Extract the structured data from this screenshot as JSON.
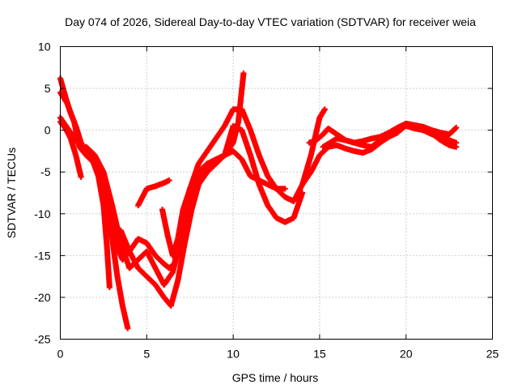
{
  "chart_data": {
    "type": "scatter",
    "title": "Day 074 of 2026, Sidereal Day-to-day VTEC variation (SDTVAR) for receiver weia",
    "xlabel": "GPS time / hours",
    "ylabel": "SDTVAR / TECUs",
    "xlim": [
      0,
      25
    ],
    "ylim": [
      -25,
      10
    ],
    "xticks": [
      0,
      5,
      10,
      15,
      20,
      25
    ],
    "yticks": [
      -25,
      -20,
      -15,
      -10,
      -5,
      0,
      5,
      10
    ],
    "grid": true,
    "marker": "plus",
    "color": "#ff0000",
    "series": [
      {
        "x": [
          0.0,
          0.3,
          0.6,
          0.9,
          1.2,
          1.5,
          1.8,
          2.1,
          2.4,
          2.7,
          3.0,
          3.3,
          3.6,
          3.9
        ],
        "y": [
          6.2,
          4.0,
          2.0,
          0.5,
          -1.5,
          -2.5,
          -3.5,
          -4.5,
          -6.5,
          -9.5,
          -13.0,
          -17.5,
          -21.0,
          -23.7
        ]
      },
      {
        "x": [
          0.0,
          0.4,
          0.8,
          1.1,
          1.5,
          1.9,
          2.2,
          2.5,
          2.7,
          2.85
        ],
        "y": [
          4.5,
          3.2,
          1.0,
          -2.0,
          -3.0,
          -3.8,
          -5.5,
          -9.0,
          -14.0,
          -18.8
        ]
      },
      {
        "x": [
          0.0,
          0.3,
          0.6,
          0.9,
          1.2
        ],
        "y": [
          1.0,
          0.2,
          -1.0,
          -3.0,
          -5.6
        ]
      },
      {
        "x": [
          0.0,
          0.5,
          1.0,
          1.5,
          2.0,
          2.4,
          2.8,
          3.2,
          3.6,
          4.0,
          4.5,
          5.0,
          5.5,
          6.0,
          6.3,
          6.6,
          7.0,
          7.5,
          8.0,
          8.5,
          9.0,
          9.5,
          10.0,
          10.5,
          11.0,
          11.5,
          12.0,
          12.5,
          13.0,
          13.5,
          14.0,
          14.5,
          15.0,
          15.3
        ],
        "y": [
          1.5,
          0.0,
          -1.5,
          -2.5,
          -3.5,
          -5.5,
          -9.0,
          -13.5,
          -15.5,
          -14.5,
          -13.0,
          -13.5,
          -15.0,
          -16.0,
          -16.5,
          -16.0,
          -12.0,
          -7.0,
          -4.0,
          -2.5,
          -1.0,
          0.5,
          2.5,
          2.5,
          0.0,
          -3.0,
          -5.5,
          -7.0,
          -8.0,
          -8.5,
          -6.5,
          -3.0,
          1.5,
          2.5
        ]
      },
      {
        "x": [
          1.5,
          2.0,
          2.5,
          3.0,
          3.5,
          4.0,
          4.5,
          5.0,
          5.5,
          6.0,
          6.5,
          7.0,
          7.5,
          8.0,
          8.5,
          9.0,
          9.5,
          10.0,
          10.3,
          10.6
        ],
        "y": [
          -2.0,
          -3.0,
          -5.0,
          -9.0,
          -13.5,
          -16.5,
          -15.5,
          -14.5,
          -16.5,
          -18.5,
          -17.0,
          -13.0,
          -8.0,
          -5.0,
          -4.0,
          -3.5,
          -3.0,
          -1.5,
          1.0,
          6.8
        ]
      },
      {
        "x": [
          3.5,
          4.0,
          4.5,
          5.0,
          5.5,
          6.0,
          6.4,
          6.8,
          7.2,
          7.6,
          8.0,
          8.5,
          9.0,
          9.5,
          10.0,
          10.5,
          11.0,
          11.5,
          12.0,
          12.5,
          13.0,
          13.5,
          14.0
        ],
        "y": [
          -12.0,
          -14.5,
          -16.5,
          -17.5,
          -18.5,
          -20.0,
          -21.0,
          -18.0,
          -13.5,
          -9.5,
          -6.5,
          -5.0,
          -4.0,
          -3.0,
          0.5,
          0.0,
          -3.0,
          -6.5,
          -9.0,
          -10.5,
          -11.0,
          -10.5,
          -7.5
        ]
      },
      {
        "x": [
          4.5,
          5.0,
          5.5,
          6.0,
          6.3
        ],
        "y": [
          -9.0,
          -7.0,
          -6.7,
          -6.3,
          -6.0
        ]
      },
      {
        "x": [
          5.9,
          6.2,
          6.5,
          6.8,
          7.1,
          7.5,
          8.0,
          8.5,
          9.0,
          9.5,
          10.0,
          10.5,
          11.0,
          11.5,
          12.0,
          12.5,
          13.0
        ],
        "y": [
          -9.5,
          -12.5,
          -15.0,
          -13.0,
          -9.5,
          -7.0,
          -5.5,
          -4.5,
          -3.5,
          -3.0,
          -2.5,
          -3.5,
          -5.5,
          -6.0,
          -6.5,
          -7.0,
          -7.0
        ]
      },
      {
        "x": [
          14.4,
          14.8,
          15.2,
          15.5,
          16.0,
          16.5,
          17.0,
          17.5,
          18.0,
          18.5,
          19.0,
          19.5,
          20.0,
          20.5,
          21.0,
          21.5,
          22.0,
          22.5,
          22.9
        ],
        "y": [
          -1.5,
          -1.2,
          -0.5,
          0.2,
          -0.5,
          -1.2,
          -1.5,
          -1.8,
          -2.0,
          -1.2,
          -0.5,
          0.0,
          0.5,
          0.2,
          0.0,
          -0.5,
          -0.8,
          -1.2,
          -1.5
        ]
      },
      {
        "x": [
          14.0,
          14.5,
          15.0,
          15.5,
          16.0,
          16.5,
          17.0,
          17.5,
          18.0,
          18.5,
          19.0,
          19.5,
          20.0,
          20.5,
          21.0,
          21.5,
          22.0,
          22.5,
          22.9
        ],
        "y": [
          -6.5,
          -5.0,
          -3.0,
          -2.0,
          -1.8,
          -2.2,
          -2.5,
          -2.7,
          -2.3,
          -1.5,
          -0.8,
          -0.3,
          0.6,
          0.3,
          0.0,
          -0.4,
          -1.2,
          -1.8,
          -2.0
        ]
      },
      {
        "x": [
          15.2,
          15.6,
          16.0,
          16.5,
          17.0,
          17.5,
          18.0,
          18.5,
          19.0,
          19.5,
          20.0,
          20.5,
          21.0,
          21.5,
          22.0,
          22.5,
          22.9
        ],
        "y": [
          -2.0,
          -1.5,
          -1.0,
          -1.2,
          -1.5,
          -1.3,
          -1.0,
          -0.8,
          -0.3,
          0.3,
          0.8,
          0.6,
          0.4,
          0.0,
          -0.3,
          -0.5,
          0.3
        ]
      }
    ]
  }
}
